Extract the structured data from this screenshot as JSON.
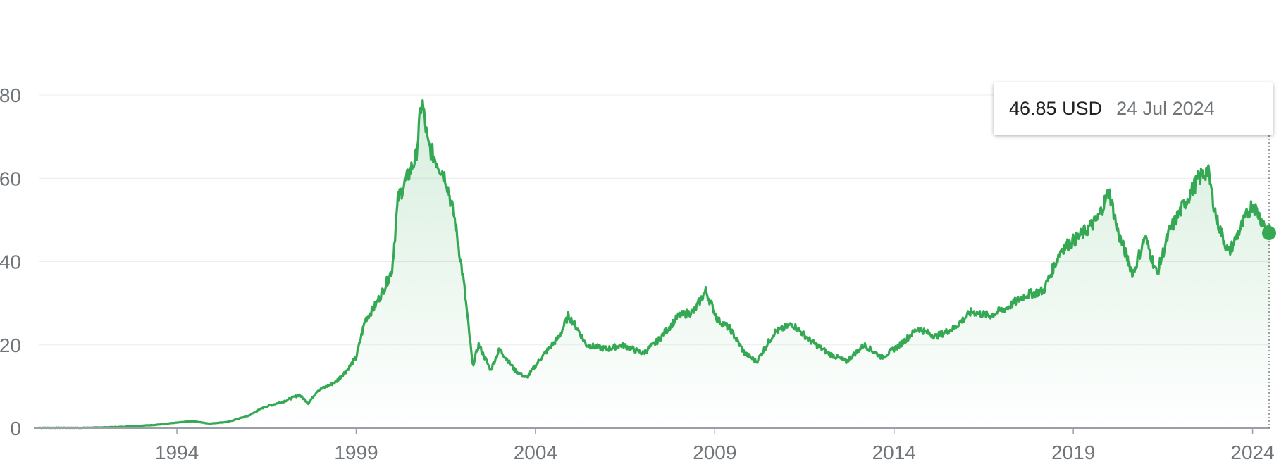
{
  "chart_data": {
    "type": "area",
    "title": "",
    "xlabel": "",
    "ylabel": "",
    "ylim": [
      0,
      80
    ],
    "xlim": [
      "1990-03",
      "2024-07"
    ],
    "grid": "horizontal",
    "line_color": "#34a853",
    "fill_color": "#34a853",
    "y_ticks": [
      "0",
      "20",
      "40",
      "60",
      "80"
    ],
    "x_ticks": [
      "1994",
      "1999",
      "2004",
      "2009",
      "2014",
      "2019",
      "2024"
    ],
    "series": [
      {
        "values": [
          [
            "1990-03",
            0.1
          ],
          [
            "1991-06",
            0.1
          ],
          [
            "1992-06",
            0.3
          ],
          [
            "1993-06",
            0.8
          ],
          [
            "1994-06",
            1.7
          ],
          [
            "1994-12",
            1.1
          ],
          [
            "1995-06",
            1.5
          ],
          [
            "1996-01",
            3.0
          ],
          [
            "1996-06",
            5.0
          ],
          [
            "1997-01",
            6.5
          ],
          [
            "1997-06",
            8.0
          ],
          [
            "1997-09",
            6.0
          ],
          [
            "1997-12",
            9.0
          ],
          [
            "1998-06",
            11.0
          ],
          [
            "1998-10",
            14.0
          ],
          [
            "1999-01",
            17.0
          ],
          [
            "1999-04",
            26.0
          ],
          [
            "1999-07",
            29.0
          ],
          [
            "1999-10",
            33.0
          ],
          [
            "2000-01",
            38.0
          ],
          [
            "2000-03",
            55.0
          ],
          [
            "2000-06",
            60.0
          ],
          [
            "2000-09",
            65.0
          ],
          [
            "2000-11",
            79.0
          ],
          [
            "2001-01",
            68.0
          ],
          [
            "2001-04",
            64.0
          ],
          [
            "2001-07",
            60.0
          ],
          [
            "2001-10",
            50.0
          ],
          [
            "2002-01",
            35.0
          ],
          [
            "2002-04",
            15.0
          ],
          [
            "2002-06",
            20.0
          ],
          [
            "2002-10",
            14.0
          ],
          [
            "2003-01",
            19.0
          ],
          [
            "2003-06",
            14.0
          ],
          [
            "2003-10",
            12.0
          ],
          [
            "2004-03",
            17.0
          ],
          [
            "2004-09",
            22.0
          ],
          [
            "2004-12",
            27.0
          ],
          [
            "2005-03",
            24.0
          ],
          [
            "2005-06",
            20.0
          ],
          [
            "2006-01",
            19.0
          ],
          [
            "2006-06",
            20.0
          ],
          [
            "2007-01",
            18.0
          ],
          [
            "2007-06",
            21.0
          ],
          [
            "2008-01",
            27.0
          ],
          [
            "2008-06",
            28.0
          ],
          [
            "2008-10",
            33.0
          ],
          [
            "2009-02",
            26.0
          ],
          [
            "2009-06",
            24.0
          ],
          [
            "2009-11",
            18.0
          ],
          [
            "2010-03",
            16.0
          ],
          [
            "2010-09",
            23.0
          ],
          [
            "2011-03",
            25.0
          ],
          [
            "2011-09",
            21.0
          ],
          [
            "2012-03",
            18.0
          ],
          [
            "2012-09",
            16.0
          ],
          [
            "2013-03",
            20.0
          ],
          [
            "2013-09",
            17.0
          ],
          [
            "2014-03",
            20.0
          ],
          [
            "2014-09",
            24.0
          ],
          [
            "2015-03",
            22.0
          ],
          [
            "2015-09",
            24.0
          ],
          [
            "2016-03",
            28.0
          ],
          [
            "2016-09",
            27.0
          ],
          [
            "2017-03",
            29.0
          ],
          [
            "2017-09",
            32.0
          ],
          [
            "2018-03",
            33.0
          ],
          [
            "2018-09",
            43.0
          ],
          [
            "2019-03",
            46.0
          ],
          [
            "2019-09",
            50.0
          ],
          [
            "2020-01",
            57.0
          ],
          [
            "2020-04",
            47.0
          ],
          [
            "2020-09",
            37.0
          ],
          [
            "2021-01",
            46.0
          ],
          [
            "2021-05",
            37.0
          ],
          [
            "2021-09",
            47.0
          ],
          [
            "2022-03",
            55.0
          ],
          [
            "2022-07",
            60.0
          ],
          [
            "2022-10",
            62.0
          ],
          [
            "2023-01",
            50.0
          ],
          [
            "2023-05",
            42.0
          ],
          [
            "2023-09",
            48.0
          ],
          [
            "2024-01",
            54.0
          ],
          [
            "2024-04",
            50.0
          ],
          [
            "2024-07",
            46.85
          ]
        ]
      }
    ],
    "tooltip": {
      "value": "46.85 USD",
      "date": "24 Jul 2024",
      "x": "2024-07",
      "y": 46.85
    }
  }
}
